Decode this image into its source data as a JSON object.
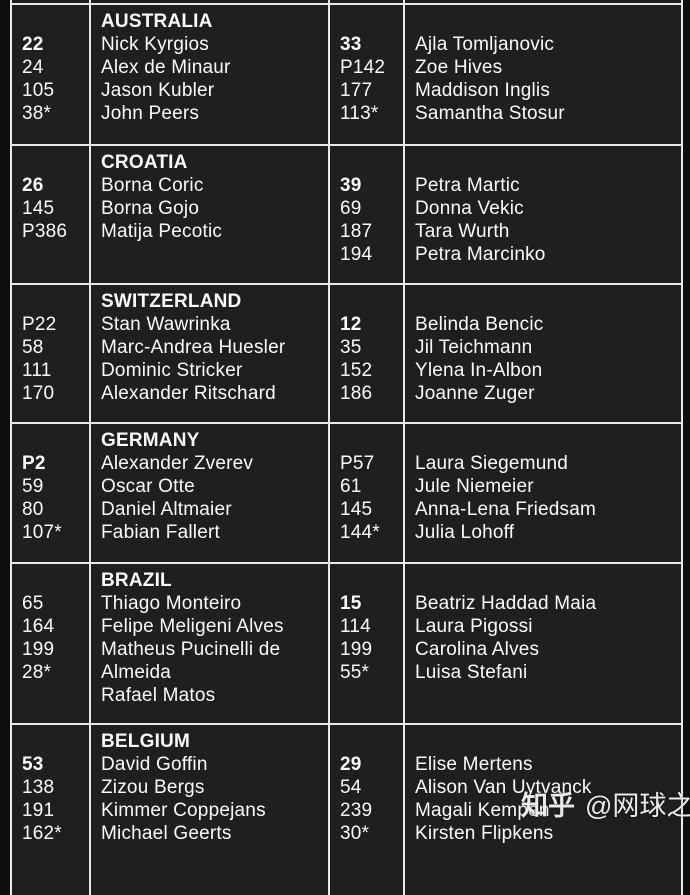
{
  "colors": {
    "page_bg": "#0f0f0f",
    "cell_bg": "#1f1f1f",
    "grid_line": "#e9e9e9",
    "text": "#fbfbfb"
  },
  "watermark": {
    "site": "知乎",
    "handle": "@网球之家"
  },
  "table": {
    "rows": [
      {
        "country": "AUSTRALIA",
        "men": {
          "ranks": [
            {
              "value": "22",
              "bold": true
            },
            {
              "value": "24",
              "bold": false
            },
            {
              "value": "105",
              "bold": false
            },
            {
              "value": "38*",
              "bold": false
            }
          ],
          "players": [
            "Nick Kyrgios",
            "Alex de Minaur",
            "Jason Kubler",
            "John Peers"
          ]
        },
        "women": {
          "ranks": [
            {
              "value": "33",
              "bold": true
            },
            {
              "value": "P142",
              "bold": false
            },
            {
              "value": "177",
              "bold": false
            },
            {
              "value": "113*",
              "bold": false
            }
          ],
          "players": [
            "Ajla Tomljanovic",
            "Zoe Hives",
            "Maddison Inglis",
            "Samantha Stosur"
          ]
        }
      },
      {
        "country": "CROATIA",
        "men": {
          "ranks": [
            {
              "value": "26",
              "bold": true
            },
            {
              "value": "145",
              "bold": false
            },
            {
              "value": "P386",
              "bold": false
            }
          ],
          "players": [
            "Borna Coric",
            "Borna Gojo",
            "Matija Pecotic"
          ]
        },
        "women": {
          "ranks": [
            {
              "value": "39",
              "bold": true
            },
            {
              "value": "69",
              "bold": false
            },
            {
              "value": "187",
              "bold": false
            },
            {
              "value": "194",
              "bold": false
            }
          ],
          "players": [
            "Petra Martic",
            "Donna Vekic",
            "Tara Wurth",
            "Petra Marcinko"
          ]
        }
      },
      {
        "country": "SWITZERLAND",
        "men": {
          "ranks": [
            {
              "value": "P22",
              "bold": false
            },
            {
              "value": "58",
              "bold": false
            },
            {
              "value": "111",
              "bold": false
            },
            {
              "value": "170",
              "bold": false
            }
          ],
          "players": [
            "Stan Wawrinka",
            "Marc-Andrea Huesler",
            "Dominic Stricker",
            "Alexander Ritschard"
          ]
        },
        "women": {
          "ranks": [
            {
              "value": "12",
              "bold": true
            },
            {
              "value": "35",
              "bold": false
            },
            {
              "value": "152",
              "bold": false
            },
            {
              "value": "186",
              "bold": false
            }
          ],
          "players": [
            "Belinda Bencic",
            "Jil Teichmann",
            "Ylena In-Albon",
            "Joanne Zuger"
          ]
        }
      },
      {
        "country": "GERMANY",
        "men": {
          "ranks": [
            {
              "value": "P2",
              "bold": true
            },
            {
              "value": "59",
              "bold": false
            },
            {
              "value": "80",
              "bold": false
            },
            {
              "value": "107*",
              "bold": false
            }
          ],
          "players": [
            "Alexander Zverev",
            "Oscar Otte",
            "Daniel Altmaier",
            "Fabian Fallert"
          ]
        },
        "women": {
          "ranks": [
            {
              "value": "P57",
              "bold": false
            },
            {
              "value": "61",
              "bold": false
            },
            {
              "value": "145",
              "bold": false
            },
            {
              "value": "144*",
              "bold": false
            }
          ],
          "players": [
            "Laura Siegemund",
            "Jule Niemeier",
            "Anna-Lena Friedsam",
            "Julia Lohoff"
          ]
        }
      },
      {
        "country": "BRAZIL",
        "men": {
          "ranks": [
            {
              "value": "65",
              "bold": false
            },
            {
              "value": "164",
              "bold": false
            },
            {
              "value": "199",
              "bold": false
            },
            {
              "value": "28*",
              "bold": false
            }
          ],
          "players": [
            "Thiago Monteiro",
            "Felipe Meligeni Alves",
            "Matheus Pucinelli de Almeida",
            "Rafael Matos"
          ]
        },
        "women": {
          "ranks": [
            {
              "value": "15",
              "bold": true
            },
            {
              "value": "114",
              "bold": false
            },
            {
              "value": "199",
              "bold": false
            },
            {
              "value": "55*",
              "bold": false
            }
          ],
          "players": [
            "Beatriz Haddad Maia",
            "Laura Pigossi",
            "Carolina Alves",
            "Luisa Stefani"
          ]
        }
      },
      {
        "country": "BELGIUM",
        "men": {
          "ranks": [
            {
              "value": "53",
              "bold": true
            },
            {
              "value": "138",
              "bold": false
            },
            {
              "value": "191",
              "bold": false
            },
            {
              "value": "162*",
              "bold": false
            }
          ],
          "players": [
            "David Goffin",
            "Zizou Bergs",
            "Kimmer Coppejans",
            "Michael Geerts"
          ]
        },
        "women": {
          "ranks": [
            {
              "value": "29",
              "bold": true
            },
            {
              "value": "54",
              "bold": false
            },
            {
              "value": "239",
              "bold": false
            },
            {
              "value": "30*",
              "bold": false
            }
          ],
          "players": [
            "Elise Mertens",
            "Alison Van Uytvanck",
            "Magali Kempen",
            "Kirsten Flipkens"
          ]
        }
      }
    ]
  }
}
